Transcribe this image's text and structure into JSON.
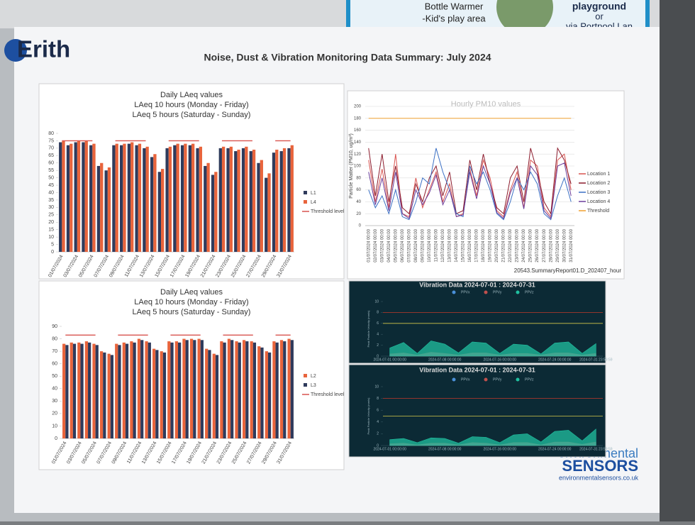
{
  "notice": {
    "line1": "Bottle Warmer",
    "line2": "-Kid's play area",
    "line3": "playground",
    "line4": "or",
    "line5": "via Portpool Lan"
  },
  "header": {
    "logo": "Erith",
    "title": "Noise, Dust & Vibration Monitoring Data Summary: July 2024"
  },
  "chart_data": [
    {
      "type": "bar",
      "title": "Daily LAeq values",
      "subtitle": [
        "LAeq 10 hours (Monday - Friday)",
        "LAeq 5 hours (Saturday - Sunday)"
      ],
      "categories": [
        "01/07/2024",
        null,
        "03/07/2024",
        null,
        "05/07/2024",
        null,
        "07/07/2024",
        null,
        "09/07/2024",
        null,
        "11/07/2024",
        null,
        "13/07/2024",
        null,
        "15/07/2024",
        null,
        "17/07/2024",
        null,
        "19/07/2024",
        null,
        "21/07/2024",
        null,
        "23/07/2024",
        null,
        "25/07/2024",
        null,
        "27/07/2024",
        null,
        "29/07/2024",
        null,
        "31/07/2024"
      ],
      "series": [
        {
          "name": "L1",
          "color": "#2f3b5c",
          "values": [
            74,
            72,
            74,
            74,
            72,
            58,
            55,
            72,
            72,
            73,
            72,
            70,
            64,
            54,
            70,
            72,
            72,
            72,
            70,
            58,
            52,
            70,
            70,
            68,
            70,
            68,
            60,
            50,
            67,
            68,
            70
          ]
        },
        {
          "name": "L4",
          "color": "#e8643c",
          "values": [
            75,
            73,
            75,
            75,
            73,
            60,
            57,
            73,
            73,
            74,
            73,
            71,
            66,
            56,
            71,
            73,
            73,
            73,
            71,
            60,
            54,
            71,
            71,
            69,
            71,
            69,
            62,
            53,
            69,
            70,
            72
          ]
        },
        {
          "name": "Threshold level",
          "color": "#d9534f",
          "type": "line",
          "values": [
            75,
            75,
            75,
            75,
            75,
            null,
            null,
            75,
            75,
            75,
            75,
            75,
            null,
            null,
            75,
            75,
            75,
            75,
            75,
            null,
            null,
            75,
            75,
            75,
            75,
            75,
            null,
            null,
            75,
            75,
            75
          ]
        }
      ],
      "ylim": [
        0,
        80
      ],
      "yticks": [
        0,
        5,
        10,
        15,
        20,
        25,
        30,
        35,
        40,
        45,
        50,
        55,
        60,
        65,
        70,
        75,
        80
      ],
      "grid": false
    },
    {
      "type": "line",
      "title": "Hourly PM10 values",
      "y_label": "Particle Matter (PM10, ug/m³)",
      "note": "20543.SummaryReport01.D_202407_hour",
      "categories": [
        "01/07/2024 00:00",
        "02/07/2024 00:00",
        "03/07/2024 00:00",
        "04/07/2024 00:00",
        "05/07/2024 00:00",
        "06/07/2024 00:00",
        "07/07/2024 00:00",
        "08/07/2024 00:00",
        "09/07/2024 00:00",
        "10/07/2024 00:00",
        "11/07/2024 00:00",
        "12/07/2024 00:00",
        "13/07/2024 00:00",
        "14/07/2024 00:00",
        "15/07/2024 00:00",
        "16/07/2024 00:00",
        "17/07/2024 00:00",
        "18/07/2024 00:00",
        "19/07/2024 00:00",
        "20/07/2024 00:00",
        "21/07/2024 00:00",
        "22/07/2024 00:00",
        "23/07/2024 00:00",
        "24/07/2024 00:00",
        "25/07/2024 00:00",
        "26/07/2024 00:00",
        "27/07/2024 00:00",
        "28/07/2024 00:00",
        "29/07/2024 00:00",
        "30/07/2024 00:00",
        "31/07/2024 00:00"
      ],
      "series": [
        {
          "name": "Location 1",
          "color": "#d9534f",
          "values": [
            110,
            40,
            95,
            30,
            120,
            20,
            15,
            80,
            30,
            60,
            90,
            40,
            70,
            15,
            20,
            95,
            50,
            110,
            80,
            25,
            15,
            60,
            90,
            30,
            110,
            100,
            30,
            15,
            110,
            120,
            60
          ]
        },
        {
          "name": "Location 2",
          "color": "#8b1a2b",
          "values": [
            130,
            50,
            120,
            40,
            100,
            30,
            20,
            70,
            40,
            80,
            100,
            50,
            90,
            20,
            25,
            110,
            60,
            120,
            70,
            30,
            20,
            80,
            100,
            40,
            130,
            90,
            40,
            20,
            130,
            110,
            70
          ]
        },
        {
          "name": "Location 3",
          "color": "#3a6fc4",
          "values": [
            60,
            30,
            50,
            20,
            60,
            15,
            10,
            40,
            80,
            70,
            130,
            90,
            60,
            20,
            15,
            100,
            70,
            90,
            60,
            20,
            10,
            40,
            80,
            60,
            90,
            70,
            20,
            10,
            50,
            80,
            40
          ]
        },
        {
          "name": "Location 4",
          "color": "#6a3d9a",
          "values": [
            90,
            35,
            80,
            25,
            90,
            20,
            12,
            60,
            35,
            55,
            85,
            35,
            60,
            15,
            18,
            90,
            45,
            100,
            70,
            22,
            12,
            55,
            80,
            28,
            100,
            85,
            25,
            12,
            100,
            105,
            50
          ]
        },
        {
          "name": "Threshold",
          "color": "#f0a030",
          "values": [
            180,
            180,
            180,
            180,
            180,
            180,
            180,
            180,
            180,
            180,
            180,
            180,
            180,
            180,
            180,
            180,
            180,
            180,
            180,
            180,
            180,
            180,
            180,
            180,
            180,
            180,
            180,
            180,
            180,
            180,
            180
          ]
        }
      ],
      "ylim": [
        0,
        200
      ],
      "yticks": [
        0,
        20,
        40,
        60,
        80,
        100,
        120,
        140,
        160,
        180,
        200
      ],
      "grid": true
    },
    {
      "type": "bar",
      "title": "Daily LAeq values",
      "subtitle": [
        "LAeq 10 hours (Monday - Friday)",
        "LAeq 5 hours (Saturday - Sunday)"
      ],
      "categories": [
        "01/07/2024",
        null,
        "03/07/2024",
        null,
        "05/07/2024",
        null,
        "07/07/2024",
        null,
        "09/07/2024",
        null,
        "11/07/2024",
        null,
        "13/07/2024",
        null,
        "15/07/2024",
        null,
        "17/07/2024",
        null,
        "19/07/2024",
        null,
        "21/07/2024",
        null,
        "23/07/2024",
        null,
        "25/07/2024",
        null,
        "27/07/2024",
        null,
        "29/07/2024",
        null,
        "31/07/2024"
      ],
      "series": [
        {
          "name": "L2",
          "color": "#e8643c",
          "values": [
            76,
            77,
            77,
            78,
            76,
            70,
            68,
            76,
            77,
            78,
            80,
            78,
            72,
            70,
            78,
            78,
            80,
            80,
            80,
            72,
            68,
            78,
            80,
            78,
            79,
            78,
            74,
            70,
            78,
            79,
            80
          ]
        },
        {
          "name": "L3",
          "color": "#2f3b5c",
          "values": [
            75,
            76,
            76,
            77,
            75,
            69,
            67,
            75,
            76,
            77,
            79,
            77,
            71,
            69,
            77,
            77,
            79,
            79,
            79,
            71,
            67,
            77,
            79,
            77,
            78,
            77,
            73,
            69,
            77,
            78,
            79
          ]
        },
        {
          "name": "Threshold level",
          "color": "#d9534f",
          "type": "line",
          "values": [
            83,
            83,
            83,
            83,
            83,
            null,
            null,
            83,
            83,
            83,
            83,
            83,
            null,
            null,
            83,
            83,
            83,
            83,
            83,
            null,
            null,
            83,
            83,
            83,
            83,
            83,
            null,
            null,
            83,
            83,
            83
          ]
        }
      ],
      "ylim": [
        0,
        90
      ],
      "yticks": [
        0,
        10,
        20,
        30,
        40,
        50,
        60,
        70,
        80,
        90
      ],
      "grid": false
    },
    {
      "type": "area",
      "title": "Vibration Data 2024-07-01 : 2024-07-31",
      "y_label": "Peak Particle Velocity (mm/s)",
      "background": "#0c2a35",
      "categories": [
        "2024-07-01 00:00:00",
        null,
        null,
        null,
        "2024-07-08 00:00:00",
        null,
        null,
        null,
        "2024-07-16 00:00:00",
        null,
        null,
        null,
        "2024-07-24 00:00:00",
        null,
        null,
        "2024-07-31 23:59:59"
      ],
      "series": [
        {
          "name": "PPVx",
          "color": "#4a90d9",
          "values": [
            0.3,
            0.5,
            0.2,
            0.6,
            0.4,
            0.2,
            0.5,
            0.5,
            0.2,
            0.4,
            0.4,
            0.2,
            0.5,
            0.5,
            0.2,
            0.4
          ]
        },
        {
          "name": "PPVy",
          "color": "#c0504d",
          "values": [
            0.4,
            0.6,
            0.2,
            0.7,
            0.5,
            0.2,
            0.6,
            0.6,
            0.2,
            0.5,
            0.5,
            0.2,
            0.6,
            0.6,
            0.2,
            0.5
          ]
        },
        {
          "name": "PPVz",
          "color": "#20c0a0",
          "values": [
            1.5,
            2.5,
            0.5,
            2.8,
            2.2,
            0.6,
            2.6,
            2.4,
            0.5,
            2.2,
            2.0,
            0.4,
            2.4,
            2.6,
            0.5,
            2.3
          ]
        }
      ],
      "reference_lines": [
        {
          "value": 8,
          "color": "#c0392b"
        },
        {
          "value": 6,
          "color": "#d4c84a"
        }
      ],
      "ylim": [
        0,
        10
      ],
      "yticks": [
        0,
        2,
        4,
        6,
        8,
        10
      ],
      "grid": false
    },
    {
      "type": "area",
      "title": "Vibration Data 2024-07-01 : 2024-07-31",
      "y_label": "Peak Particle Velocity (mm/s)",
      "background": "#0c2a35",
      "categories": [
        "2024-07-01 00:00:00",
        null,
        null,
        null,
        "2024-07-08 00:00:00",
        null,
        null,
        null,
        "2024-07-16 00:00:00",
        null,
        null,
        null,
        "2024-07-24 00:00:00",
        null,
        null,
        "2024-07-31 23:59:59"
      ],
      "series": [
        {
          "name": "PPVx",
          "color": "#4a90d9",
          "values": [
            0.2,
            0.3,
            0.1,
            0.3,
            0.3,
            0.1,
            0.4,
            0.3,
            0.1,
            0.4,
            0.4,
            0.1,
            0.5,
            0.5,
            0.2,
            0.5
          ]
        },
        {
          "name": "PPVy",
          "color": "#c0504d",
          "values": [
            0.3,
            0.4,
            0.1,
            0.4,
            0.4,
            0.1,
            0.5,
            0.4,
            0.1,
            0.5,
            0.5,
            0.1,
            0.6,
            0.6,
            0.2,
            0.6
          ]
        },
        {
          "name": "PPVz",
          "color": "#20c0a0",
          "values": [
            1.0,
            1.2,
            0.5,
            1.3,
            1.2,
            0.4,
            1.5,
            1.4,
            0.5,
            1.8,
            2.0,
            0.6,
            2.4,
            2.6,
            0.8,
            2.8
          ]
        }
      ],
      "reference_lines": [
        {
          "value": 8,
          "color": "#c0392b"
        },
        {
          "value": 5,
          "color": "#d4c84a"
        }
      ],
      "ylim": [
        0,
        10
      ],
      "yticks": [
        0,
        2,
        4,
        6,
        8,
        10
      ],
      "grid": false
    }
  ],
  "footer": {
    "brand_top": "environmental",
    "brand_bottom": "SENSORS",
    "url": "environmentalsensors.co.uk"
  }
}
